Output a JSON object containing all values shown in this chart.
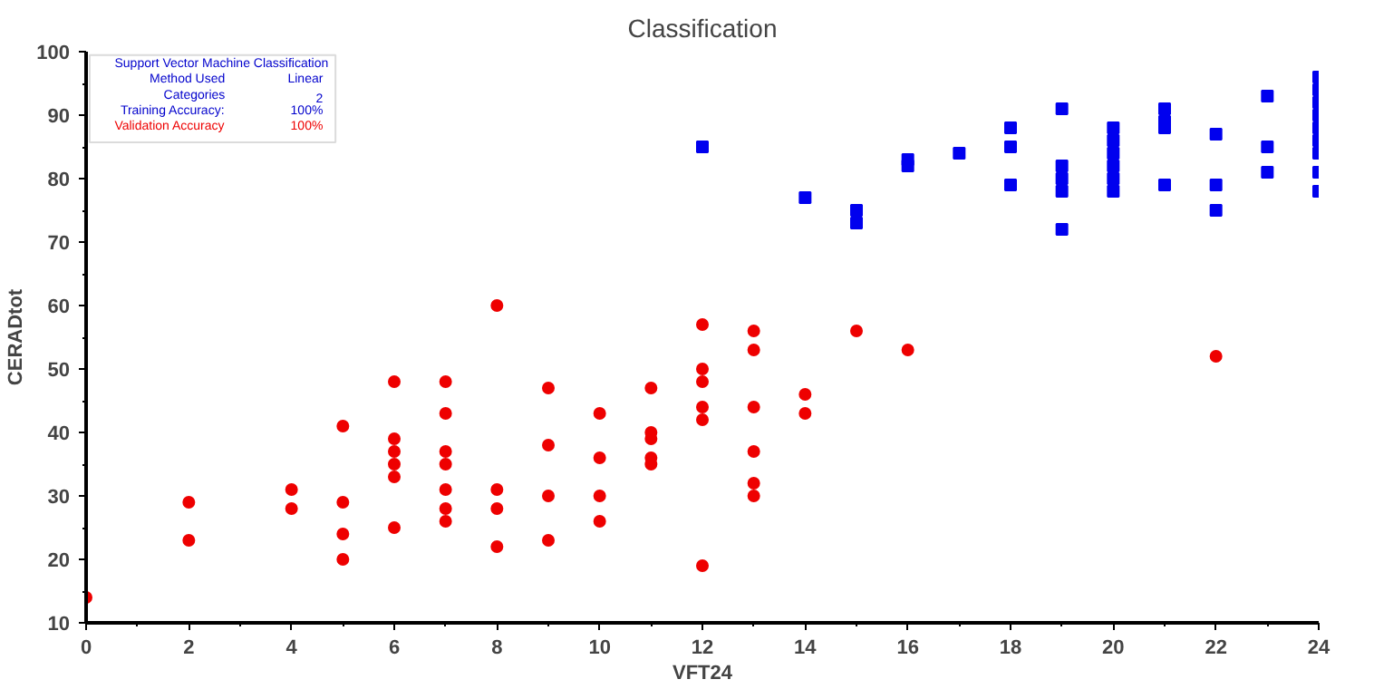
{
  "chart_data": {
    "type": "scatter",
    "title": "Classification",
    "xlabel": "VFT24",
    "ylabel": "CERADtot",
    "xlim": [
      0,
      24
    ],
    "xticks": [
      0,
      2,
      4,
      6,
      8,
      10,
      12,
      14,
      16,
      18,
      20,
      22,
      24
    ],
    "ylim": [
      10,
      100
    ],
    "yticks": [
      10,
      20,
      30,
      40,
      50,
      60,
      70,
      80,
      90,
      100
    ],
    "grid": false,
    "annotations": [
      "Support Vector Machine Classification",
      "Method Used",
      "Linear",
      "Categories",
      "2",
      "Training Accuracy:",
      "100%",
      "Validation Accuracy",
      "100%"
    ],
    "series": [
      {
        "color": "#0000ee",
        "marker": "square",
        "x": [
          12,
          14,
          15,
          15,
          16,
          16,
          17,
          18,
          18,
          18,
          19,
          19,
          19,
          19,
          19,
          20,
          20,
          20,
          20,
          20,
          20,
          21,
          21,
          21,
          21,
          22,
          22,
          22,
          23,
          23,
          23,
          24,
          24,
          24,
          24,
          24,
          24,
          24,
          24,
          24
        ],
        "values": [
          85,
          77,
          75,
          73,
          83,
          82,
          84,
          88,
          85,
          79,
          91,
          82,
          80,
          78,
          72,
          88,
          86,
          84,
          82,
          80,
          78,
          91,
          89,
          88,
          79,
          87,
          79,
          75,
          93,
          85,
          81,
          96,
          94,
          92,
          90,
          88,
          86,
          84,
          81,
          78
        ]
      },
      {
        "color": "#ee0000",
        "marker": "circle",
        "x": [
          0,
          2,
          2,
          4,
          4,
          5,
          5,
          5,
          5,
          6,
          6,
          6,
          6,
          6,
          6,
          7,
          7,
          7,
          7,
          7,
          7,
          7,
          8,
          8,
          8,
          8,
          9,
          9,
          9,
          9,
          10,
          10,
          10,
          10,
          11,
          11,
          11,
          11,
          11,
          12,
          12,
          12,
          12,
          12,
          12,
          13,
          13,
          13,
          13,
          13,
          13,
          14,
          14,
          15,
          16,
          22
        ],
        "values": [
          14,
          29,
          23,
          31,
          28,
          41,
          29,
          24,
          20,
          48,
          39,
          37,
          35,
          33,
          25,
          48,
          43,
          37,
          35,
          31,
          28,
          26,
          60,
          31,
          28,
          22,
          47,
          38,
          30,
          23,
          43,
          36,
          30,
          26,
          47,
          40,
          39,
          36,
          35,
          57,
          50,
          48,
          44,
          42,
          19,
          56,
          53,
          44,
          37,
          32,
          30,
          46,
          43,
          56,
          53,
          52
        ]
      }
    ]
  }
}
